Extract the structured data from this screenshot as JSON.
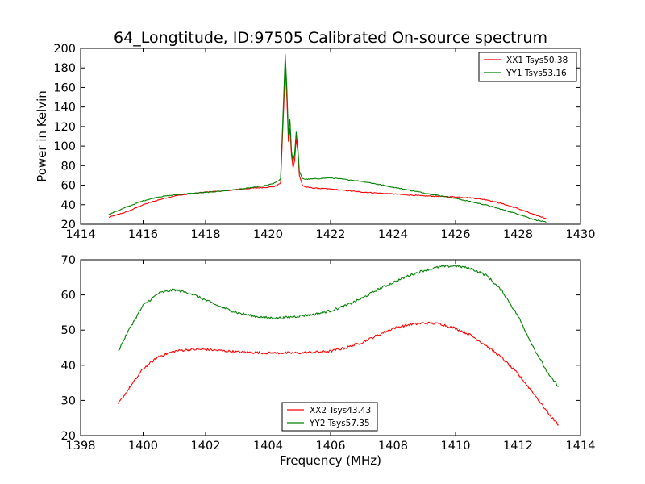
{
  "title": "64_Longtitude, ID:97505 Calibrated On-source spectrum",
  "chart_data": [
    {
      "type": "line",
      "ylabel": "Power in Kelvin",
      "xlabel": "",
      "xlim": [
        1414,
        1430
      ],
      "ylim": [
        20,
        200
      ],
      "xticks": [
        "1414",
        "1416",
        "1418",
        "1420",
        "1422",
        "1424",
        "1426",
        "1428",
        "1430"
      ],
      "yticks": [
        "20",
        "40",
        "60",
        "80",
        "100",
        "120",
        "140",
        "160",
        "180",
        "200"
      ],
      "legend_position": "top-right",
      "series": [
        {
          "name": "XX1 Tsys50.38",
          "color": "#ff0000",
          "x": [
            1414.9,
            1415.5,
            1416,
            1416.5,
            1417,
            1417.5,
            1418,
            1418.5,
            1419,
            1419.5,
            1420,
            1420.2,
            1420.4,
            1420.5,
            1420.55,
            1420.6,
            1420.65,
            1420.7,
            1420.75,
            1420.8,
            1420.85,
            1420.9,
            1420.95,
            1421.0,
            1421.1,
            1421.2,
            1421.5,
            1422,
            1423,
            1424,
            1425,
            1426,
            1426.5,
            1427,
            1427.5,
            1428,
            1428.5,
            1428.9
          ],
          "y": [
            27,
            33,
            40,
            45,
            49,
            51,
            53,
            54,
            55.5,
            57,
            58,
            58.5,
            62,
            140,
            180,
            150,
            105,
            118,
            90,
            78,
            85,
            108,
            95,
            70,
            60,
            58,
            57,
            56,
            53,
            51,
            49,
            48,
            47,
            45,
            41,
            36,
            30,
            26
          ]
        },
        {
          "name": "YY1 Tsys53.16",
          "color": "#008000",
          "x": [
            1414.9,
            1415.5,
            1416,
            1416.5,
            1417,
            1417.5,
            1418,
            1418.5,
            1419,
            1419.5,
            1420,
            1420.2,
            1420.4,
            1420.5,
            1420.55,
            1420.6,
            1420.65,
            1420.7,
            1420.75,
            1420.8,
            1420.85,
            1420.9,
            1420.95,
            1421.0,
            1421.1,
            1421.2,
            1421.5,
            1422,
            1423,
            1424,
            1425,
            1426,
            1426.5,
            1427,
            1427.5,
            1428,
            1428.5,
            1428.9
          ],
          "y": [
            30,
            38,
            44,
            48,
            50,
            51.5,
            52.5,
            54,
            55.5,
            57.5,
            60,
            62,
            66,
            150,
            194,
            160,
            112,
            127,
            95,
            84,
            92,
            114,
            100,
            74,
            67,
            66,
            66.5,
            67.5,
            64,
            58,
            52,
            46.5,
            43,
            39.5,
            35,
            30.5,
            25,
            22
          ]
        }
      ]
    },
    {
      "type": "line",
      "xlabel": "Frequency (MHz)",
      "ylabel": "",
      "xlim": [
        1398,
        1414
      ],
      "ylim": [
        20,
        70
      ],
      "xticks": [
        "1398",
        "1400",
        "1402",
        "1404",
        "1406",
        "1408",
        "1410",
        "1412",
        "1414"
      ],
      "yticks": [
        "20",
        "30",
        "40",
        "50",
        "60",
        "70"
      ],
      "legend_position": "bottom-center",
      "series": [
        {
          "name": "XX2 Tsys43.43",
          "color": "#ff0000",
          "x": [
            1399.2,
            1399.6,
            1400,
            1400.5,
            1401,
            1401.5,
            1402,
            1403,
            1404,
            1405,
            1406,
            1406.5,
            1407,
            1407.5,
            1408,
            1408.5,
            1409,
            1409.5,
            1410,
            1410.5,
            1411,
            1411.5,
            1412,
            1412.5,
            1413,
            1413.3
          ],
          "y": [
            29,
            34,
            39,
            42.5,
            44,
            44.5,
            44.5,
            43.8,
            43.5,
            43.5,
            44,
            45,
            46.5,
            48.5,
            50.5,
            51.5,
            52,
            51.8,
            50.5,
            48.5,
            45.5,
            42,
            37.5,
            32,
            26,
            23
          ]
        },
        {
          "name": "YY2 Tsys57.35",
          "color": "#008000",
          "x": [
            1399.2,
            1399.6,
            1400,
            1400.5,
            1401,
            1401.5,
            1402,
            1402.5,
            1403,
            1403.5,
            1404,
            1404.5,
            1405,
            1405.5,
            1406,
            1406.5,
            1407,
            1407.5,
            1408,
            1408.5,
            1409,
            1409.5,
            1410,
            1410.5,
            1411,
            1411.5,
            1412,
            1412.5,
            1413,
            1413.3
          ],
          "y": [
            44,
            51,
            57,
            60.5,
            61.5,
            60.5,
            58.5,
            56.5,
            55,
            54,
            53.5,
            53.5,
            54,
            54.5,
            55.5,
            57,
            59,
            61.5,
            63.5,
            65.5,
            67,
            68,
            68.3,
            67.5,
            65.5,
            61,
            54,
            45,
            37,
            34
          ]
        }
      ]
    }
  ]
}
